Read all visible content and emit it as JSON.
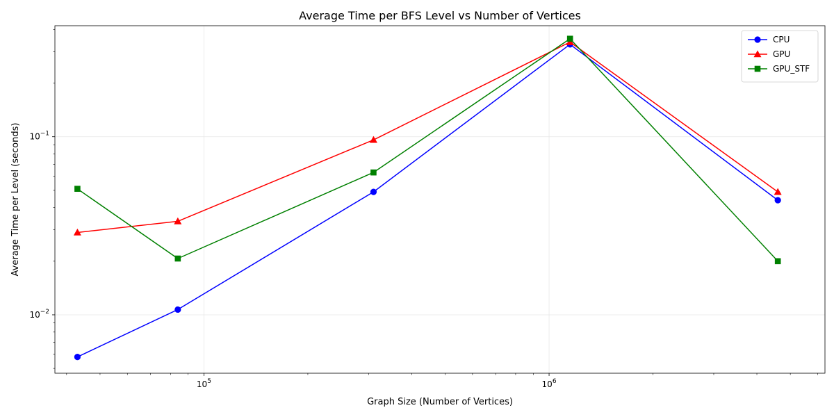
{
  "chart_data": {
    "type": "line",
    "title": "Average Time per BFS Level vs Number of Vertices",
    "xlabel": "Graph Size (Number of Vertices)",
    "ylabel": "Average Time per Level (seconds)",
    "xscale": "log",
    "yscale": "log",
    "xlim": [
      37000,
      6300000
    ],
    "ylim": [
      0.0047,
      0.42
    ],
    "grid": true,
    "legend_position": "top-right",
    "x": [
      43000,
      84000,
      310000,
      1150000,
      4600000
    ],
    "series": [
      {
        "name": "CPU",
        "color": "#0000ff",
        "marker": "circle",
        "values": [
          0.0058,
          0.0107,
          0.049,
          0.33,
          0.044
        ]
      },
      {
        "name": "GPU",
        "color": "#ff0000",
        "marker": "triangle",
        "values": [
          0.029,
          0.0335,
          0.096,
          0.34,
          0.049
        ]
      },
      {
        "name": "GPU_STF",
        "color": "#008000",
        "marker": "square",
        "values": [
          0.051,
          0.0207,
          0.063,
          0.355,
          0.02
        ]
      }
    ],
    "x_major_ticks": [
      {
        "value": 100000,
        "base": "10",
        "exp": "5"
      },
      {
        "value": 1000000,
        "base": "10",
        "exp": "6"
      }
    ],
    "y_major_ticks": [
      {
        "value": 0.01,
        "base": "10",
        "exp": "−2"
      },
      {
        "value": 0.1,
        "base": "10",
        "exp": "−1"
      }
    ]
  }
}
